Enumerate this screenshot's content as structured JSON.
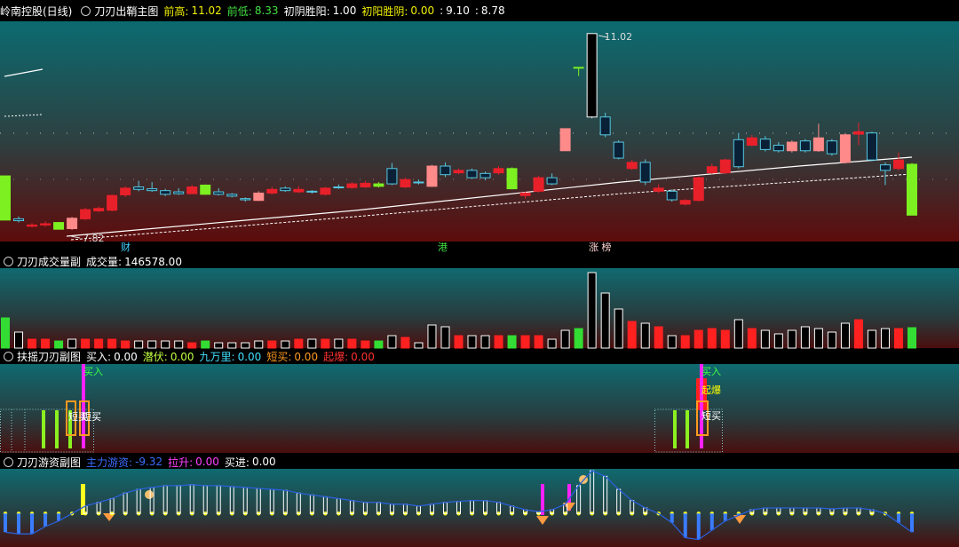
{
  "header": {
    "stock": "岭南控股(日线)"
  },
  "chart_data": [
    {
      "type": "candlestick",
      "title": "刀刃出鞘主图",
      "indicators": [
        {
          "name": "前高:",
          "value": "11.02",
          "color": "#f0f000"
        },
        {
          "name": "前低:",
          "value": "8.33",
          "color": "#40e040"
        },
        {
          "name": "初阴胜阳:",
          "value": "1.00",
          "color": "#ffffff"
        },
        {
          "name": "初阳胜阴:",
          "value": "0.00",
          "color": "#f0f000"
        },
        {
          "name": ":",
          "value": "9.10",
          "color": "#ffffff"
        },
        {
          "name": ":",
          "value": "8.78",
          "color": "#ffffff"
        }
      ],
      "open": [
        8.7,
        8.0,
        7.88,
        7.9,
        7.94,
        7.84,
        8.0,
        8.13,
        8.14,
        8.39,
        8.52,
        8.49,
        8.46,
        8.44,
        8.41,
        8.55,
        8.44,
        8.4,
        8.33,
        8.3,
        8.42,
        8.5,
        8.44,
        8.45,
        8.4,
        8.52,
        8.51,
        8.52,
        8.57,
        8.82,
        8.52,
        8.6,
        8.53,
        8.86,
        8.75,
        8.79,
        8.74,
        8.75,
        8.82,
        8.38,
        8.45,
        8.67,
        9.11,
        10.47,
        9.66,
        9.66,
        9.25,
        8.82,
        8.92,
        8.45,
        8.45,
        8.24,
        8.3,
        8.75,
        8.75,
        9.29,
        9.2,
        9.3,
        9.2,
        9.11,
        9.27,
        9.11,
        9.27,
        8.92,
        9.38,
        9.4,
        8.88,
        8.82,
        8.89
      ],
      "high": [
        8.7,
        8.04,
        7.93,
        7.96,
        7.95,
        8.03,
        8.18,
        8.2,
        8.4,
        8.53,
        8.62,
        8.6,
        8.49,
        8.5,
        8.55,
        8.56,
        8.5,
        8.42,
        8.35,
        8.45,
        8.52,
        8.53,
        8.53,
        8.47,
        8.52,
        8.56,
        8.6,
        8.62,
        8.6,
        8.91,
        8.67,
        8.64,
        8.88,
        8.92,
        8.82,
        8.82,
        8.77,
        8.86,
        8.84,
        8.44,
        8.7,
        8.74,
        9.47,
        10.47,
        11.02,
        9.73,
        9.28,
        8.96,
        8.97,
        8.56,
        8.48,
        8.32,
        8.69,
        8.9,
        8.98,
        9.4,
        9.37,
        9.35,
        9.25,
        9.28,
        9.3,
        9.55,
        9.3,
        9.4,
        9.57,
        9.42,
        8.92,
        9.08,
        8.91
      ],
      "low": [
        7.98,
        7.94,
        7.86,
        7.87,
        7.83,
        7.82,
        7.98,
        8.11,
        8.12,
        8.36,
        8.45,
        8.44,
        8.37,
        8.39,
        8.4,
        8.39,
        8.38,
        8.35,
        8.28,
        8.29,
        8.4,
        8.44,
        8.42,
        8.41,
        8.38,
        8.49,
        8.49,
        8.5,
        8.51,
        8.55,
        8.5,
        8.56,
        8.52,
        8.68,
        8.73,
        8.65,
        8.63,
        8.72,
        8.48,
        8.33,
        8.43,
        8.55,
        9.11,
        10.33,
        9.64,
        9.33,
        8.97,
        8.8,
        8.55,
        8.42,
        8.28,
        8.22,
        8.28,
        8.73,
        8.73,
        8.82,
        9.18,
        9.1,
        9.08,
        9.08,
        9.08,
        9.09,
        9.03,
        8.9,
        9.2,
        8.94,
        8.55,
        8.79,
        8.06
      ],
      "close": [
        7.98,
        7.97,
        7.9,
        7.92,
        7.83,
        8.01,
        8.15,
        8.17,
        8.38,
        8.5,
        8.48,
        8.46,
        8.4,
        8.41,
        8.52,
        8.4,
        8.4,
        8.37,
        8.31,
        8.42,
        8.48,
        8.46,
        8.48,
        8.44,
        8.5,
        8.51,
        8.57,
        8.58,
        8.53,
        8.57,
        8.64,
        8.6,
        8.86,
        8.72,
        8.79,
        8.67,
        8.67,
        8.82,
        8.49,
        8.42,
        8.67,
        8.57,
        9.47,
        10.47,
        11.02,
        9.37,
        8.99,
        8.92,
        8.6,
        8.5,
        8.31,
        8.3,
        8.67,
        8.85,
        8.96,
        8.85,
        9.32,
        9.13,
        9.11,
        9.25,
        9.11,
        9.32,
        9.06,
        9.37,
        9.42,
        8.96,
        8.79,
        8.96,
        8.06
      ],
      "colors": [
        "#7cf020",
        "#54c8e0",
        "#e8202a",
        "#e8202a",
        "#7cf020",
        "#ff8a8a",
        "#e8202a",
        "#e8202a",
        "#e8202a",
        "#e8202a",
        "#54c8e0",
        "#54c8e0",
        "#54c8e0",
        "#54c8e0",
        "#e8202a",
        "#7cf020",
        "#54c8e0",
        "#54c8e0",
        "#54c8e0",
        "#ff8a8a",
        "#e8202a",
        "#54c8e0",
        "#e8202a",
        "#54c8e0",
        "#e8202a",
        "#54c8e0",
        "#e8202a",
        "#e8202a",
        "#7cf020",
        "#54c8e0",
        "#e8202a",
        "#54c8e0",
        "#ff8a8a",
        "#54c8e0",
        "#e8202a",
        "#54c8e0",
        "#54c8e0",
        "#e8202a",
        "#7cf020",
        "#e8202a",
        "#e8202a",
        "#54c8e0",
        "#ff8a8a",
        "#7cf020",
        "#ffffff",
        "#54c8e0",
        "#54c8e0",
        "#e8202a",
        "#54c8e0",
        "#e8202a",
        "#54c8e0",
        "#e8202a",
        "#e8202a",
        "#e8202a",
        "#e8202a",
        "#54c8e0",
        "#e8202a",
        "#54c8e0",
        "#54c8e0",
        "#ff8a8a",
        "#54c8e0",
        "#ff8a8a",
        "#54c8e0",
        "#ff8a8a",
        "#e8202a",
        "#54c8e0",
        "#54c8e0",
        "#e8202a",
        "#7cf020"
      ],
      "ylim": [
        7.63,
        11.22
      ],
      "events": [
        {
          "text": "财",
          "color": "#40d0ff"
        },
        {
          "text": "港",
          "color": "#40e040"
        },
        {
          "text": "涨 榜",
          "color": "#ffd0d0"
        }
      ]
    },
    {
      "type": "bar",
      "title": "刀刃成交量副",
      "indicators": [
        {
          "name": "成交量:",
          "value": "146578.00",
          "color": "#ffffff"
        }
      ],
      "values": [
        216700,
        114700,
        63700,
        63700,
        51000,
        63700,
        63700,
        63700,
        63700,
        51000,
        51000,
        51000,
        51000,
        51000,
        38200,
        51000,
        38200,
        38200,
        38200,
        51000,
        51000,
        51000,
        63700,
        63700,
        63700,
        63700,
        63700,
        51000,
        51000,
        89200,
        76500,
        38200,
        165700,
        153000,
        89200,
        89200,
        89200,
        89200,
        89200,
        89200,
        89200,
        63700,
        127500,
        140200,
        541700,
        395100,
        280400,
        191200,
        178400,
        153000,
        89200,
        89200,
        127500,
        140200,
        127500,
        203900,
        140200,
        127500,
        102000,
        127500,
        153000,
        140200,
        114700,
        178400,
        203900,
        127500,
        140200,
        140200,
        146578
      ],
      "colors": [
        "#33dd33",
        "#ffffff",
        "#ff2020",
        "#ff2020",
        "#33dd33",
        "#ffffff",
        "#ff2020",
        "#ff2020",
        "#ff2020",
        "#ff2020",
        "#ffffff",
        "#ffffff",
        "#ffffff",
        "#ffffff",
        "#ff2020",
        "#33dd33",
        "#ffffff",
        "#ffffff",
        "#ffffff",
        "#ffffff",
        "#ff2020",
        "#ffffff",
        "#ff2020",
        "#ffffff",
        "#ff2020",
        "#ffffff",
        "#ff2020",
        "#ff2020",
        "#33dd33",
        "#ffffff",
        "#ff2020",
        "#ffffff",
        "#ffffff",
        "#ffffff",
        "#ff2020",
        "#ffffff",
        "#ffffff",
        "#ff2020",
        "#33dd33",
        "#ff2020",
        "#ff2020",
        "#ffffff",
        "#ffffff",
        "#33dd33",
        "#ffffff",
        "#ffffff",
        "#ffffff",
        "#ff2020",
        "#ffffff",
        "#ff2020",
        "#ffffff",
        "#ff2020",
        "#ff2020",
        "#ff2020",
        "#ff2020",
        "#ffffff",
        "#ff2020",
        "#ffffff",
        "#ffffff",
        "#ffffff",
        "#ffffff",
        "#ffffff",
        "#ffffff",
        "#ffffff",
        "#ff2020",
        "#ffffff",
        "#ffffff",
        "#ff2020",
        "#33dd33"
      ],
      "ylim": [
        0,
        573600
      ]
    },
    {
      "type": "signal",
      "title": "扶摇刀刃副图",
      "indicators": [
        {
          "name": "买入:",
          "value": "0.00",
          "color": "#ffffff"
        },
        {
          "name": "潜伏:",
          "value": "0.00",
          "color": "#c0ff40"
        },
        {
          "name": "九万里:",
          "value": "0.00",
          "color": "#40e0ff"
        },
        {
          "name": "短买:",
          "value": "0.00",
          "color": "#ff9a20"
        },
        {
          "name": "起爆:",
          "value": "0.00",
          "color": "#ff3030"
        }
      ],
      "annotations": [
        {
          "text": "买入",
          "color": "#40ff40"
        },
        {
          "text": "短买",
          "color": "#ffffff"
        },
        {
          "text": "短买",
          "color": "#ffffff"
        },
        {
          "text": "买入",
          "color": "#40ff40"
        },
        {
          "text": "起爆",
          "color": "#ffff00"
        },
        {
          "text": "短买",
          "color": "#ffffff"
        }
      ]
    },
    {
      "type": "line",
      "title": "刀刃游资副图",
      "indicators": [
        {
          "name": "主力游资:",
          "value": "-9.32",
          "color": "#3a6cff"
        },
        {
          "name": "拉升:",
          "value": "0.00",
          "color": "#ff40ff"
        },
        {
          "name": "买进:",
          "value": "0.00",
          "color": "#ffffff"
        }
      ],
      "color": "#2a5fd8",
      "values": [
        -9.32,
        -10.25,
        -10.25,
        -6.52,
        -3.73,
        0,
        3.73,
        5.59,
        7.46,
        10.25,
        12.12,
        13.05,
        13.98,
        13.98,
        14.45,
        13.98,
        13.98,
        13.51,
        13.05,
        12.58,
        12.12,
        11.65,
        10.25,
        9.32,
        8.39,
        7.46,
        6.52,
        5.59,
        5.59,
        4.66,
        4.66,
        3.73,
        4.66,
        5.59,
        6.06,
        6.52,
        6.52,
        5.59,
        3.73,
        1.86,
        0.93,
        1.86,
        4.66,
        13.98,
        21.44,
        18.64,
        12.12,
        6.52,
        2.8,
        0,
        -4.66,
        -12.12,
        -13.05,
        -8.39,
        -3.73,
        -0.93,
        1.86,
        2.8,
        2.8,
        2.8,
        2.8,
        2.8,
        2.33,
        2.8,
        2.8,
        1.86,
        0,
        -4.66,
        -9.32
      ],
      "ylim": [
        -16.78,
        22.37
      ]
    }
  ]
}
